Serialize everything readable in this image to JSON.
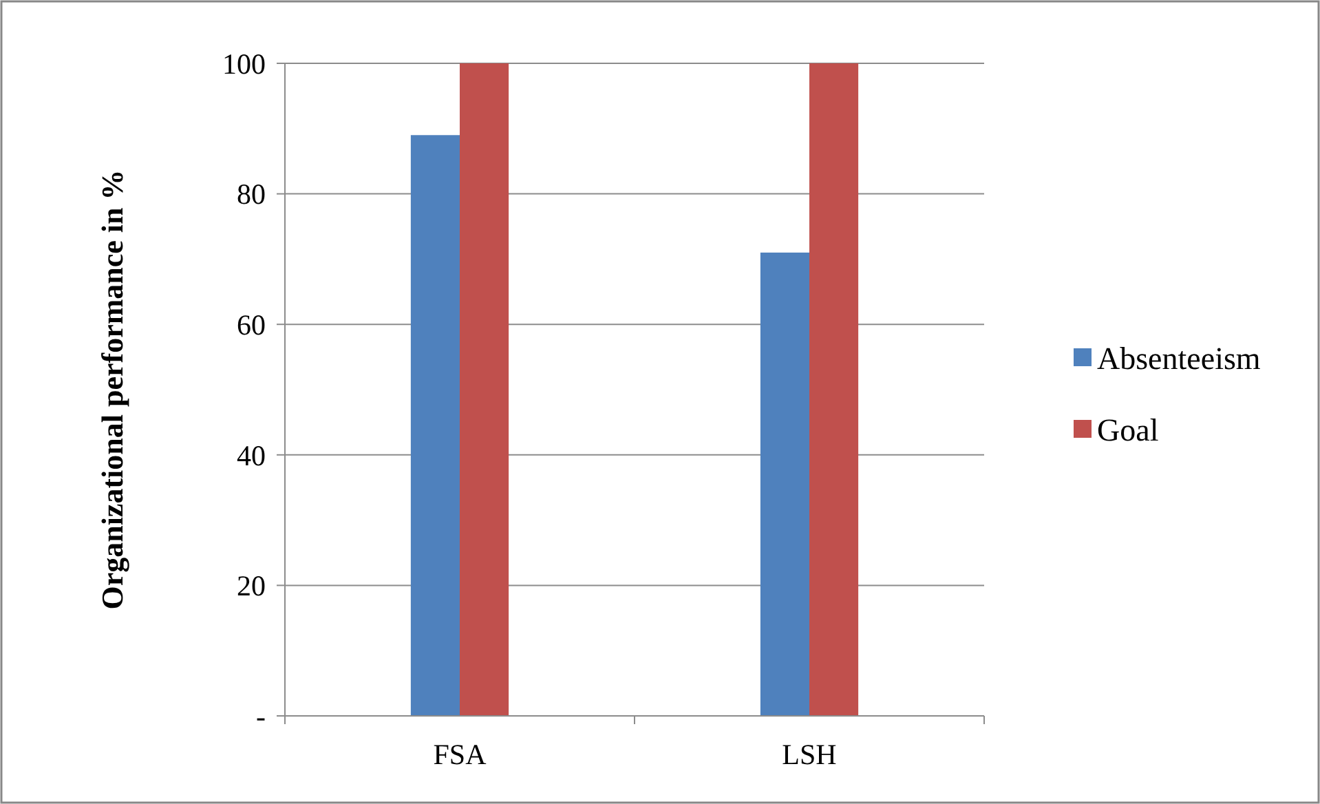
{
  "chart_data": {
    "type": "bar",
    "ylabel": "Organizational performance in %",
    "categories": [
      "FSA",
      "LSH"
    ],
    "series": [
      {
        "name": "Absenteeism",
        "color": "#4f81bd",
        "values": [
          89,
          71
        ]
      },
      {
        "name": "Goal",
        "color": "#c0504d",
        "values": [
          100,
          100
        ]
      }
    ],
    "ylim": [
      0,
      100
    ],
    "yticks": [
      {
        "value": 0,
        "label": "-"
      },
      20,
      40,
      60,
      80,
      100
    ],
    "grid": "y",
    "legend": "right"
  }
}
